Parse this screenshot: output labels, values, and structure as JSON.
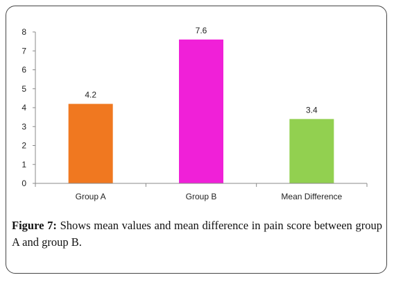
{
  "chart_data": {
    "type": "bar",
    "categories": [
      "Group A",
      "Group B",
      "Mean Difference"
    ],
    "values": [
      4.2,
      7.6,
      3.4
    ],
    "data_labels": [
      "4.2",
      "7.6",
      "3.4"
    ],
    "colors": [
      "#f07820",
      "#f020d8",
      "#92d050"
    ],
    "ylim": [
      0,
      8
    ],
    "yticks": [
      "0",
      "1",
      "2",
      "3",
      "4",
      "5",
      "6",
      "7",
      "8"
    ],
    "grid": false,
    "title": "",
    "xlabel": "",
    "ylabel": ""
  },
  "caption": {
    "label": "Figure 7:",
    "text": " Shows mean values and mean difference in pain score between group A and group B."
  }
}
